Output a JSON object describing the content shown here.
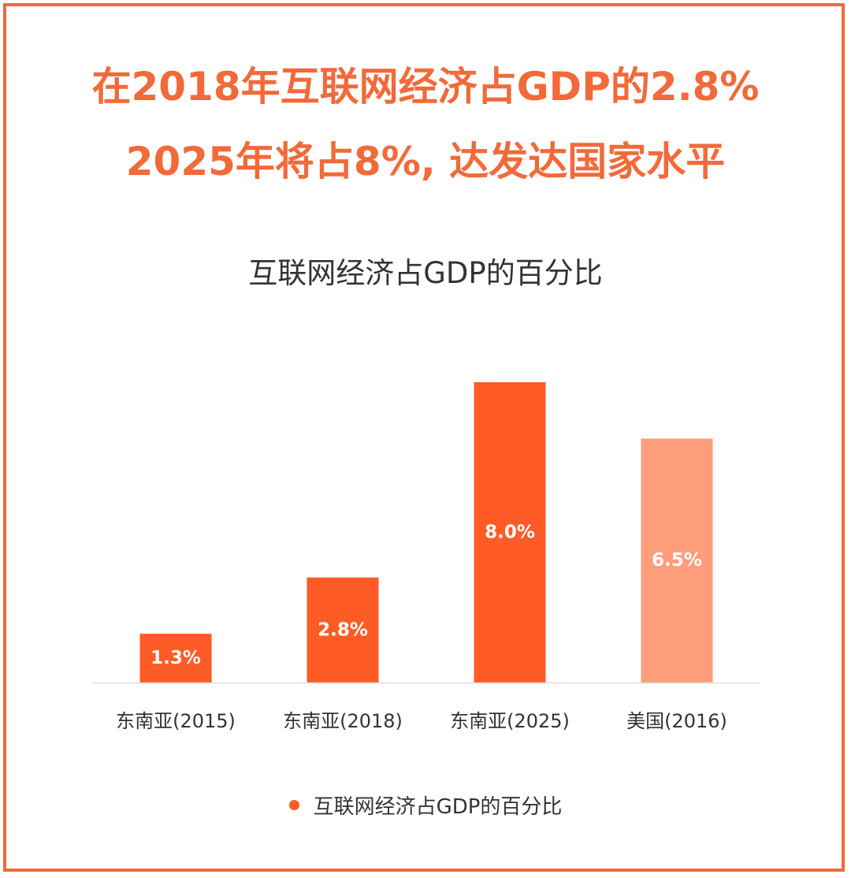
{
  "headline": {
    "line1": "在2018年互联网经济占GDP的2.8%",
    "line2": "2025年将占8%, 达发达国家水平"
  },
  "colors": {
    "accent": "#f26a3a",
    "bar_primary": "#fe5b26",
    "bar_highlight": "#fe9d7b",
    "baseline": "#dddddd",
    "text": "#333333"
  },
  "chart_data": {
    "type": "bar",
    "title": "互联网经济占GDP的百分比",
    "categories": [
      "东南亚(2015)",
      "东南亚(2018)",
      "东南亚(2025)",
      "美国(2016)"
    ],
    "series": [
      {
        "name": "互联网经济占GDP的百分比",
        "values": [
          1.3,
          2.8,
          8.0,
          6.5
        ],
        "labels": [
          "1.3%",
          "2.8%",
          "8.0%",
          "6.5%"
        ],
        "colors": [
          "#fe5b26",
          "#fe5b26",
          "#fe5b26",
          "#fe9d7b"
        ]
      }
    ],
    "ylim": [
      0,
      8.0
    ],
    "grid": false,
    "legend": "bottom-center"
  }
}
